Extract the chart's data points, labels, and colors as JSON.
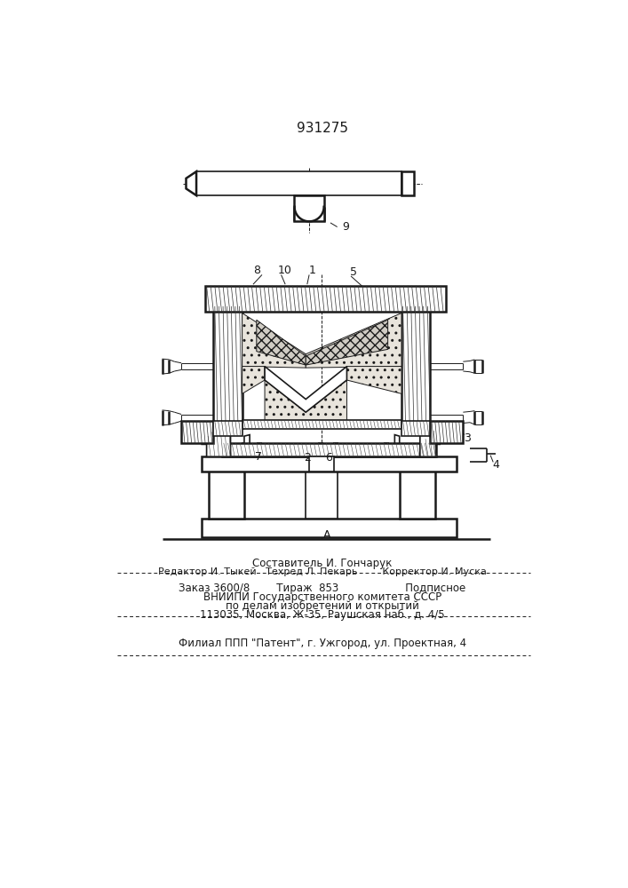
{
  "patent_number": "931275",
  "bg_color": "#ffffff",
  "line_color": "#1a1a1a",
  "title_line1": "Составитель И. Гончарук",
  "editor_line": "Редактор И. Тыкей   Техред Л. Пекарь        Корректор И. Муска",
  "order_line": "Заказ 3600/8        Тираж  853                    Подписное",
  "vniipi_line1": "ВНИИПИ Государственного комитета СССР",
  "vniipi_line2": "по делам изобретений и открытий",
  "vniipi_line3": "113035, Москва, Ж-35, Раушская наб., д. 4/5",
  "filial_line": "Филиал ППП \"Патент\", г. Ужгород, ул. Проектная, 4"
}
